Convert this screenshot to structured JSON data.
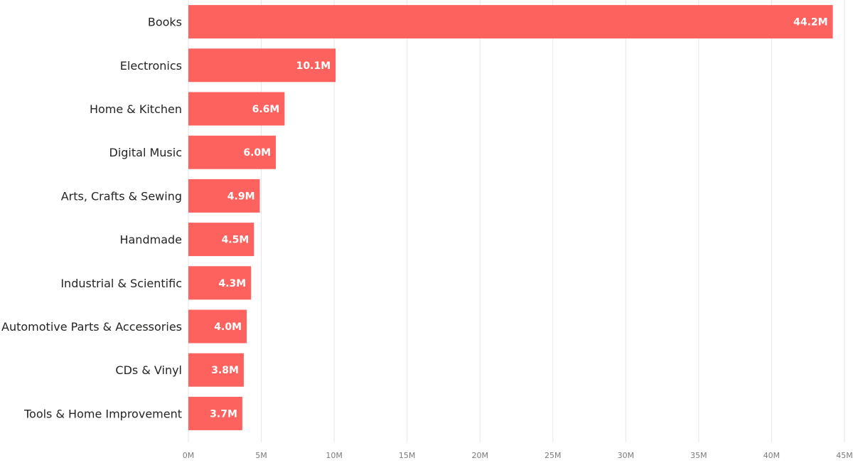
{
  "chart_data": {
    "type": "bar",
    "orientation": "horizontal",
    "categories": [
      "Books",
      "Electronics",
      "Home & Kitchen",
      "Digital Music",
      "Arts, Crafts & Sewing",
      "Handmade",
      "Industrial & Scientific",
      "Automotive Parts & Accessories",
      "CDs & Vinyl",
      "Tools & Home Improvement"
    ],
    "values": [
      44.2,
      10.1,
      6.6,
      6.0,
      4.9,
      4.5,
      4.3,
      4.0,
      3.8,
      3.7
    ],
    "value_unit": "M",
    "data_labels": [
      "44.2M",
      "10.1M",
      "6.6M",
      "6.0M",
      "4.9M",
      "4.5M",
      "4.3M",
      "4.0M",
      "3.8M",
      "3.7M"
    ],
    "xlim": [
      0,
      45
    ],
    "x_ticks": [
      0,
      5,
      10,
      15,
      20,
      25,
      30,
      35,
      40,
      45
    ],
    "x_tick_labels": [
      "0M",
      "5M",
      "10M",
      "15M",
      "20M",
      "25M",
      "30M",
      "35M",
      "40M",
      "45M"
    ],
    "grid": "vertical",
    "legend": "none",
    "colors": {
      "bar": "#FD625E",
      "bar_label": "#FFFFFF",
      "gridline": "#E6E6E6",
      "category_text": "#252423",
      "tick_text": "#7A7A7A"
    }
  }
}
